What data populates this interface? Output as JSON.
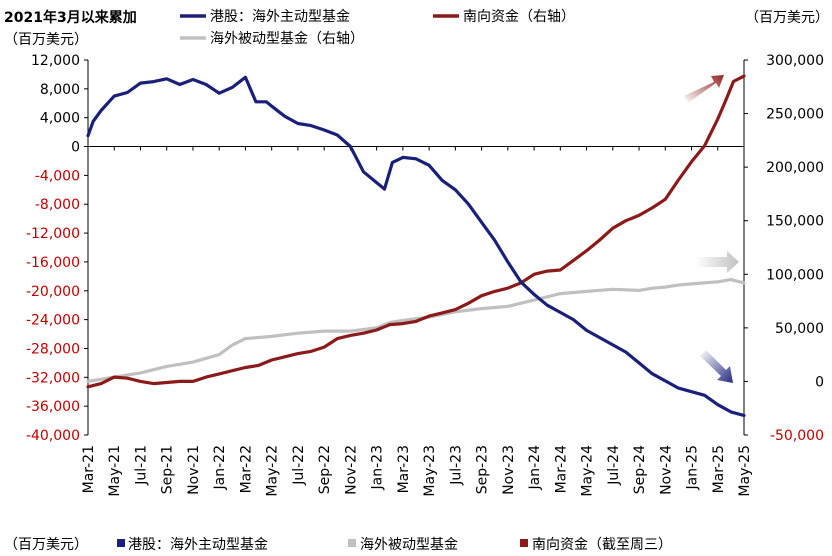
{
  "chart_data": {
    "type": "line",
    "title": "2021年3月以来累加",
    "left_unit": "（百万美元）",
    "right_unit": "（百万美元）",
    "legend": [
      {
        "name": "港股：海外主动型基金",
        "color": "#1a1f7a"
      },
      {
        "name": "南向资金（右轴）",
        "color": "#8b1a1a"
      },
      {
        "name": "海外被动型基金（右轴）",
        "color": "#c0c0c0"
      }
    ],
    "footer": {
      "unit": "（百万美元）",
      "items": [
        {
          "name": "港股：海外主动型基金",
          "color": "#1a1f7a"
        },
        {
          "name": "海外被动型基金",
          "color": "#c0c0c0"
        },
        {
          "name": "南向资金（截至周三）",
          "color": "#8b1a1a"
        }
      ]
    },
    "x_ticks": [
      "Mar-21",
      "May-21",
      "Jul-21",
      "Sep-21",
      "Nov-21",
      "Jan-22",
      "Mar-22",
      "May-22",
      "Jul-22",
      "Sep-22",
      "Nov-22",
      "Jan-23",
      "Mar-23",
      "May-23",
      "Jul-23",
      "Sep-23",
      "Nov-23",
      "Jan-24",
      "Mar-24",
      "May-24",
      "Jul-24",
      "Sep-24",
      "Nov-24",
      "Jan-25",
      "Mar-25",
      "May-25"
    ],
    "left_axis": {
      "min": -40000,
      "max": 12000,
      "ticks": [
        "12,000",
        "8,000",
        "4,000",
        "0",
        "-4,000",
        "-8,000",
        "-12,000",
        "-16,000",
        "-20,000",
        "-24,000",
        "-28,000",
        "-32,000",
        "-36,000",
        "-40,000"
      ],
      "tick_values": [
        12000,
        8000,
        4000,
        0,
        -4000,
        -8000,
        -12000,
        -16000,
        -20000,
        -24000,
        -28000,
        -32000,
        -36000,
        -40000
      ]
    },
    "right_axis": {
      "min": -50000,
      "max": 300000,
      "ticks": [
        "300,000",
        "250,000",
        "200,000",
        "150,000",
        "100,000",
        "50,000",
        "0",
        "-50,000"
      ],
      "tick_values": [
        300000,
        250000,
        200000,
        150000,
        100000,
        50000,
        0,
        -50000
      ]
    },
    "series": [
      {
        "name": "港股：海外主动型基金",
        "axis": "left",
        "color": "#1a1f7a",
        "x": [
          0,
          0.2,
          0.5,
          1,
          1.5,
          2,
          2.5,
          3,
          3.5,
          4,
          4.5,
          5,
          5.5,
          6,
          6.4,
          6.8,
          7,
          7.5,
          8,
          8.5,
          9,
          9.5,
          10,
          10.5,
          11,
          11.3,
          11.6,
          12,
          12.5,
          13,
          13.5,
          14,
          14.5,
          15,
          15.5,
          16,
          16.5,
          17,
          17.5,
          18,
          18.5,
          19,
          19.5,
          20,
          20.5,
          21,
          21.5,
          22,
          22.5,
          23,
          23.5,
          24,
          24.5,
          25
        ],
        "values": [
          1500,
          3500,
          5000,
          7000,
          7500,
          8800,
          9000,
          9400,
          8600,
          9300,
          8600,
          7400,
          8200,
          9600,
          6200,
          6200,
          5600,
          4200,
          3200,
          2900,
          2300,
          1600,
          0,
          -3500,
          -5000,
          -5900,
          -2200,
          -1500,
          -1700,
          -2600,
          -4700,
          -6000,
          -8000,
          -10500,
          -13000,
          -16000,
          -18800,
          -20500,
          -22000,
          -23000,
          -24000,
          -25500,
          -26500,
          -27500,
          -28500,
          -30000,
          -31500,
          -32500,
          -33500,
          -34000,
          -34500,
          -35800,
          -36800,
          -37300
        ]
      },
      {
        "name": "南向资金（右轴）",
        "axis": "right",
        "color": "#8b1a1a",
        "x": [
          0,
          0.5,
          1,
          1.5,
          2,
          2.5,
          3,
          3.5,
          4,
          4.5,
          5,
          5.5,
          6,
          6.5,
          7,
          7.5,
          8,
          8.5,
          9,
          9.5,
          10,
          10.5,
          11,
          11.5,
          12,
          12.5,
          13,
          13.5,
          14,
          14.5,
          15,
          15.5,
          16,
          16.5,
          17,
          17.5,
          18,
          18.5,
          19,
          19.5,
          20,
          20.5,
          21,
          21.5,
          22,
          22.5,
          23,
          23.5,
          24,
          24.3,
          24.6,
          25
        ],
        "values": [
          -5000,
          -2000,
          4000,
          3000,
          0,
          -2000,
          -1000,
          0,
          0,
          4000,
          7000,
          10000,
          13000,
          15000,
          20000,
          23000,
          26000,
          28000,
          32000,
          40000,
          43000,
          45000,
          48000,
          53000,
          54000,
          56000,
          61000,
          64000,
          67000,
          73000,
          80000,
          84000,
          87000,
          92000,
          100000,
          103000,
          104000,
          113000,
          122000,
          132000,
          143000,
          150000,
          155000,
          162000,
          170000,
          188000,
          205000,
          220000,
          245000,
          262000,
          280000,
          285000
        ]
      },
      {
        "name": "海外被动型基金（右轴）",
        "axis": "right",
        "color": "#c0c0c0",
        "x": [
          0,
          1,
          2,
          3,
          4,
          5,
          5.5,
          6,
          7,
          8,
          9,
          10,
          11,
          11.5,
          12,
          13,
          14,
          15,
          16,
          16.5,
          17,
          17.5,
          18,
          19,
          20,
          21,
          21.5,
          22,
          22.5,
          23,
          24,
          24.5,
          25
        ],
        "values": [
          0,
          4000,
          8000,
          14000,
          18000,
          25000,
          34000,
          40000,
          42000,
          45000,
          47000,
          47000,
          50000,
          55000,
          57000,
          60000,
          65000,
          68000,
          70000,
          73000,
          76000,
          79000,
          82000,
          84000,
          86000,
          85000,
          87000,
          88000,
          90000,
          91000,
          93000,
          95000,
          92000
        ]
      }
    ]
  }
}
